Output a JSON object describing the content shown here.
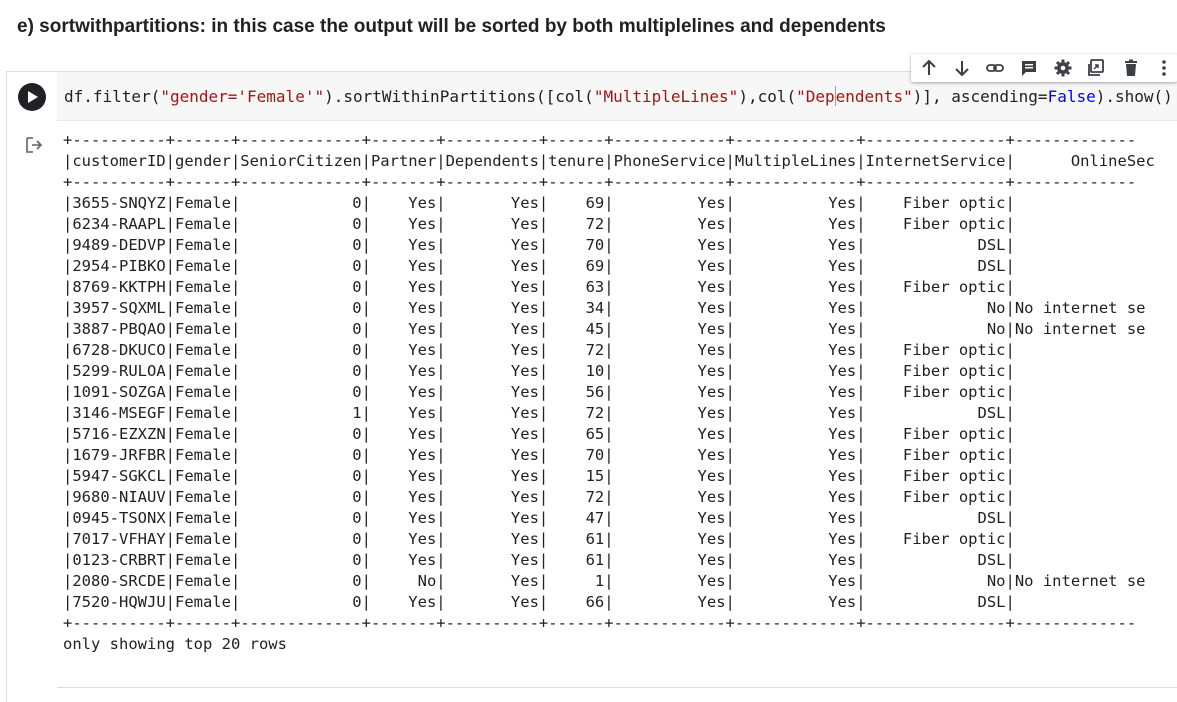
{
  "heading": "e) sortwithpartitions: in this case the output will be sorted by both multiplelines and dependents",
  "toolbar": {
    "icons": [
      "arrow-up-icon",
      "arrow-down-icon",
      "link-icon",
      "comment-icon",
      "settings-icon",
      "mirror-cell-icon",
      "delete-icon",
      "more-icon"
    ]
  },
  "code": {
    "p1": "df.filter(",
    "s1": "\"gender='Female'\"",
    "p2": ").sortWithinPartitions([col(",
    "s2": "\"MultipleLines\"",
    "p3": "),col(",
    "s3a": "\"Dep",
    "s3b": "endents\"",
    "p4": ")], ascending=",
    "kw": "False",
    "p5": ").show()"
  },
  "output": {
    "border_line": "+----------+------+-------------+-------+----------+------+------------+-------------+---------------+-------------",
    "header_line": "|customerID|gender|SeniorCitizen|Partner|Dependents|tenure|PhoneService|MultipleLines|InternetService|      OnlineSec",
    "rows": [
      "|3655-SNQYZ|Female|            0|    Yes|       Yes|    69|         Yes|          Yes|    Fiber optic|",
      "|6234-RAAPL|Female|            0|    Yes|       Yes|    72|         Yes|          Yes|    Fiber optic|",
      "|9489-DEDVP|Female|            0|    Yes|       Yes|    70|         Yes|          Yes|            DSL|",
      "|2954-PIBKO|Female|            0|    Yes|       Yes|    69|         Yes|          Yes|            DSL|",
      "|8769-KKTPH|Female|            0|    Yes|       Yes|    63|         Yes|          Yes|    Fiber optic|",
      "|3957-SQXML|Female|            0|    Yes|       Yes|    34|         Yes|          Yes|             No|No internet se",
      "|3887-PBQAO|Female|            0|    Yes|       Yes|    45|         Yes|          Yes|             No|No internet se",
      "|6728-DKUCO|Female|            0|    Yes|       Yes|    72|         Yes|          Yes|    Fiber optic|",
      "|5299-RULOA|Female|            0|    Yes|       Yes|    10|         Yes|          Yes|    Fiber optic|",
      "|1091-SOZGA|Female|            0|    Yes|       Yes|    56|         Yes|          Yes|    Fiber optic|",
      "|3146-MSEGF|Female|            1|    Yes|       Yes|    72|         Yes|          Yes|            DSL|",
      "|5716-EZXZN|Female|            0|    Yes|       Yes|    65|         Yes|          Yes|    Fiber optic|",
      "|1679-JRFBR|Female|            0|    Yes|       Yes|    70|         Yes|          Yes|    Fiber optic|",
      "|5947-SGKCL|Female|            0|    Yes|       Yes|    15|         Yes|          Yes|    Fiber optic|",
      "|9680-NIAUV|Female|            0|    Yes|       Yes|    72|         Yes|          Yes|    Fiber optic|",
      "|0945-TSONX|Female|            0|    Yes|       Yes|    47|         Yes|          Yes|            DSL|",
      "|7017-VFHAY|Female|            0|    Yes|       Yes|    61|         Yes|          Yes|    Fiber optic|",
      "|0123-CRBRT|Female|            0|    Yes|       Yes|    61|         Yes|          Yes|            DSL|",
      "|2080-SRCDE|Female|            0|     No|       Yes|     1|         Yes|          Yes|             No|No internet se",
      "|7520-HQWJU|Female|            0|    Yes|       Yes|    66|         Yes|          Yes|            DSL|"
    ],
    "footer": "only showing top 20 rows"
  }
}
